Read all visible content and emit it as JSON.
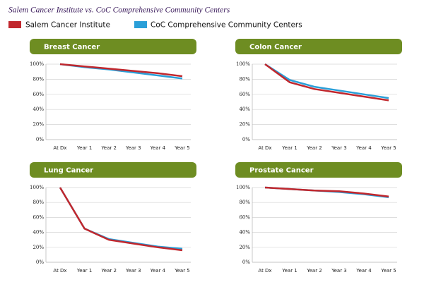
{
  "title": "Salem Cancer Institute vs. CoC Comprehensive Community Centers",
  "chart_data": [
    {
      "type": "line",
      "title": "Breast Cancer",
      "categories": [
        "At Dx",
        "Year 1",
        "Year 2",
        "Year 3",
        "Year 4",
        "Year 5"
      ],
      "series": [
        {
          "name": "Salem Cancer Institute",
          "color": "#c1272d",
          "values": [
            100,
            97,
            94,
            91,
            88,
            84
          ]
        },
        {
          "name": "CoC Comprehensive Community Centers",
          "color": "#2a9fd8",
          "values": [
            100,
            96,
            93,
            89,
            85,
            81
          ]
        }
      ],
      "ylim": [
        0,
        100
      ],
      "yticks": [
        {
          "value": 0,
          "label": "0%"
        },
        {
          "value": 20,
          "label": "20%"
        },
        {
          "value": 40,
          "label": "40%"
        },
        {
          "value": 60,
          "label": "60%"
        },
        {
          "value": 80,
          "label": "80%"
        },
        {
          "value": 100,
          "label": "100%"
        }
      ],
      "grid": true
    },
    {
      "type": "line",
      "title": "Colon Cancer",
      "categories": [
        "At Dx",
        "Year 1",
        "Year 2",
        "Year 3",
        "Year 4",
        "Year 5"
      ],
      "series": [
        {
          "name": "Salem Cancer Institute",
          "color": "#c1272d",
          "values": [
            100,
            76,
            67,
            62,
            57,
            52
          ]
        },
        {
          "name": "CoC Comprehensive Community Centers",
          "color": "#2a9fd8",
          "values": [
            100,
            79,
            70,
            65,
            60,
            55
          ]
        }
      ],
      "ylim": [
        0,
        100
      ],
      "yticks": [
        {
          "value": 0,
          "label": "0%"
        },
        {
          "value": 20,
          "label": "20%"
        },
        {
          "value": 40,
          "label": "40%"
        },
        {
          "value": 60,
          "label": "60%"
        },
        {
          "value": 80,
          "label": "80%"
        },
        {
          "value": 100,
          "label": "100%"
        }
      ],
      "grid": true
    },
    {
      "type": "line",
      "title": "Lung Cancer",
      "categories": [
        "At Dx",
        "Year 1",
        "Year 2",
        "Year 3",
        "Year 4",
        "Year 5"
      ],
      "series": [
        {
          "name": "Salem Cancer Institute",
          "color": "#c1272d",
          "values": [
            100,
            45,
            30,
            25,
            20,
            16
          ]
        },
        {
          "name": "CoC Comprehensive Community Centers",
          "color": "#2a9fd8",
          "values": [
            100,
            45,
            31,
            26,
            21,
            18
          ]
        }
      ],
      "ylim": [
        0,
        100
      ],
      "yticks": [
        {
          "value": 0,
          "label": "0%"
        },
        {
          "value": 20,
          "label": "20%"
        },
        {
          "value": 40,
          "label": "40%"
        },
        {
          "value": 60,
          "label": "60%"
        },
        {
          "value": 80,
          "label": "80%"
        },
        {
          "value": 100,
          "label": "100%"
        }
      ],
      "grid": true
    },
    {
      "type": "line",
      "title": "Prostate Cancer",
      "categories": [
        "At Dx",
        "Year 1",
        "Year 2",
        "Year 3",
        "Year 4",
        "Year 5"
      ],
      "series": [
        {
          "name": "Salem Cancer Institute",
          "color": "#c1272d",
          "values": [
            100,
            98,
            96,
            95,
            92,
            88
          ]
        },
        {
          "name": "CoC Comprehensive Community Centers",
          "color": "#2a9fd8",
          "values": [
            100,
            98,
            96,
            94,
            91,
            87
          ]
        }
      ],
      "ylim": [
        0,
        100
      ],
      "yticks": [
        {
          "value": 0,
          "label": "0%"
        },
        {
          "value": 20,
          "label": "20%"
        },
        {
          "value": 40,
          "label": "40%"
        },
        {
          "value": 60,
          "label": "60%"
        },
        {
          "value": 80,
          "label": "80%"
        },
        {
          "value": 100,
          "label": "100%"
        }
      ],
      "grid": true
    }
  ]
}
